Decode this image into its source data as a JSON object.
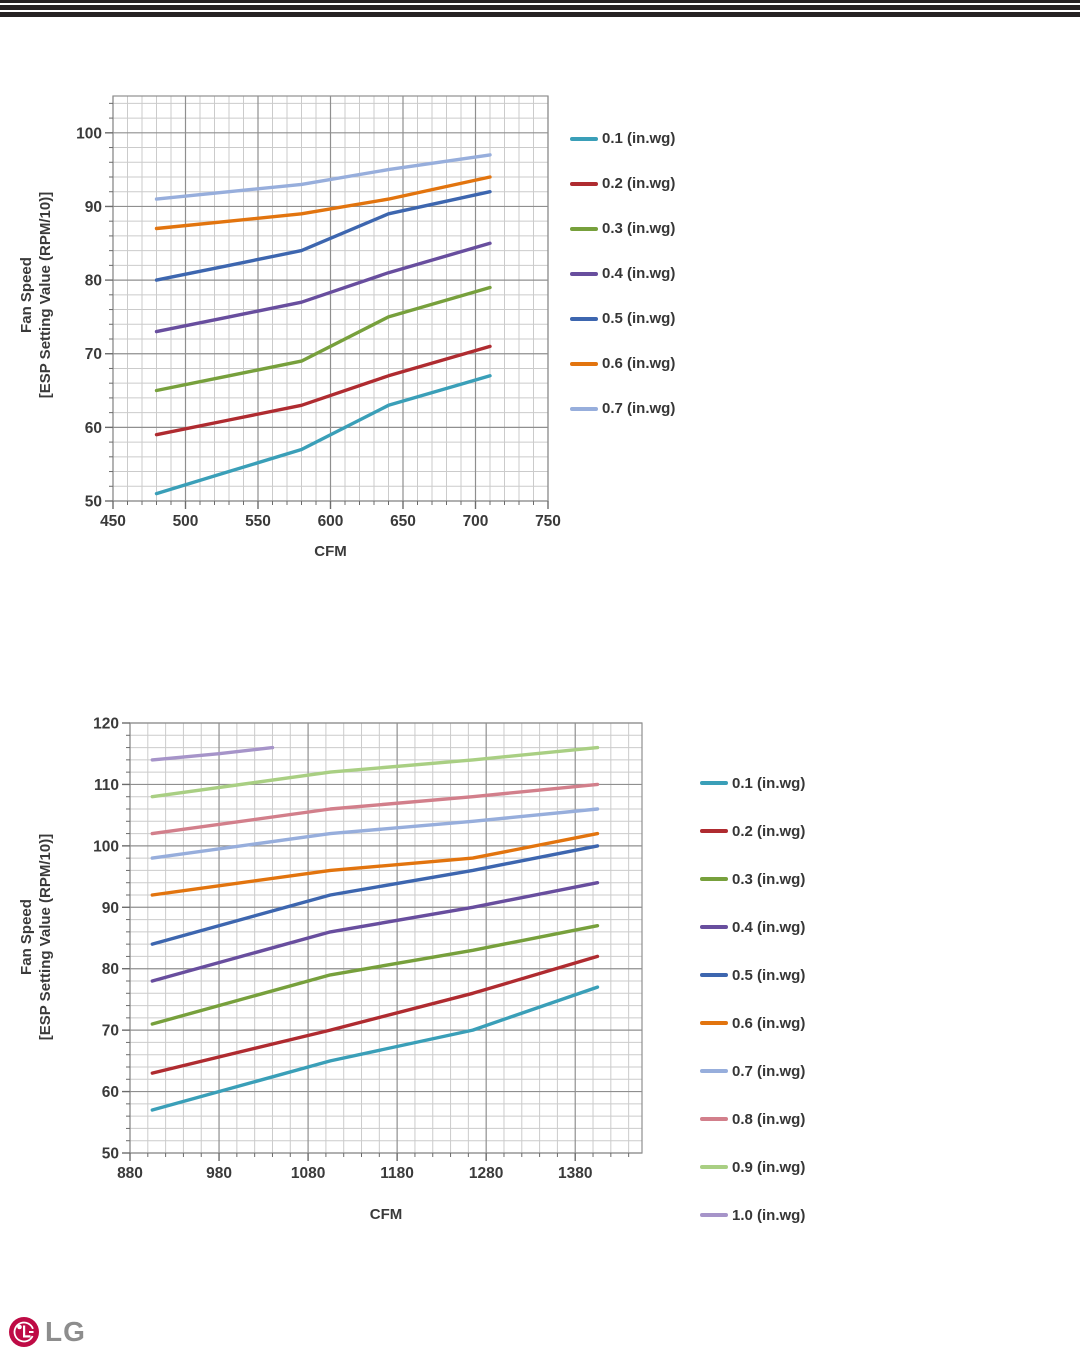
{
  "header": {
    "rule_color": "#262223"
  },
  "footer_logo": {
    "brand": "LG",
    "circle_color": "#BE0B45",
    "letters_color": "#8D8D8D"
  },
  "chart_data": [
    {
      "type": "line",
      "title": "",
      "xlabel": "CFM",
      "ylabel_line1": "Fan Speed",
      "ylabel_line2": "[ESP Setting Value (RPM/10)]",
      "xlim": [
        450,
        750
      ],
      "ylim": [
        50,
        105
      ],
      "x_major": 50,
      "x_minor": 10,
      "y_major": 10,
      "y_minor": 2,
      "x_ticks": [
        450,
        500,
        550,
        600,
        650,
        700,
        750
      ],
      "y_ticks": [
        50,
        60,
        70,
        80,
        90,
        100
      ],
      "grid": "on",
      "legend_position": "right",
      "series": [
        {
          "name": "0.1 (in.wg)",
          "color": "#3A9FB8",
          "x": [
            480,
            530,
            580,
            640,
            710
          ],
          "values": [
            51,
            54,
            57,
            63,
            67
          ]
        },
        {
          "name": "0.2 (in.wg)",
          "color": "#AF2B30",
          "x": [
            480,
            530,
            580,
            640,
            710
          ],
          "values": [
            59,
            61,
            63,
            67,
            71
          ]
        },
        {
          "name": "0.3 (in.wg)",
          "color": "#77A03C",
          "x": [
            480,
            530,
            580,
            640,
            710
          ],
          "values": [
            65,
            67,
            69,
            75,
            79
          ]
        },
        {
          "name": "0.4 (in.wg)",
          "color": "#684E9E",
          "x": [
            480,
            530,
            580,
            640,
            710
          ],
          "values": [
            73,
            75,
            77,
            81,
            85
          ]
        },
        {
          "name": "0.5 (in.wg)",
          "color": "#3D66AF",
          "x": [
            480,
            530,
            580,
            640,
            710
          ],
          "values": [
            80,
            82,
            84,
            89,
            92
          ]
        },
        {
          "name": "0.6 (in.wg)",
          "color": "#E2740E",
          "x": [
            480,
            530,
            580,
            640,
            710
          ],
          "values": [
            87,
            88,
            89,
            91,
            94
          ]
        },
        {
          "name": "0.7 (in.wg)",
          "color": "#97AEDC",
          "x": [
            480,
            530,
            580,
            640,
            710
          ],
          "values": [
            91,
            92,
            93,
            95,
            97
          ]
        }
      ]
    },
    {
      "type": "line",
      "title": "",
      "xlabel": "CFM",
      "ylabel_line1": "Fan Speed",
      "ylabel_line2": "[ESP Setting Value (RPM/10)]",
      "xlim": [
        880,
        1455
      ],
      "ylim": [
        50,
        120
      ],
      "x_major": 100,
      "x_minor": 20,
      "y_major": 10,
      "y_minor": 2,
      "x_ticks": [
        880,
        980,
        1080,
        1180,
        1280,
        1380
      ],
      "y_ticks": [
        50,
        60,
        70,
        80,
        90,
        100,
        110,
        120
      ],
      "grid": "on",
      "legend_position": "right",
      "series": [
        {
          "name": "0.1 (in.wg)",
          "color": "#3A9FB8",
          "x": [
            905,
            1105,
            1265,
            1405
          ],
          "values": [
            57,
            65,
            70,
            77
          ]
        },
        {
          "name": "0.2 (in.wg)",
          "color": "#AF2B30",
          "x": [
            905,
            1105,
            1265,
            1405
          ],
          "values": [
            63,
            70,
            76,
            82
          ]
        },
        {
          "name": "0.3 (in.wg)",
          "color": "#77A03C",
          "x": [
            905,
            1105,
            1265,
            1405
          ],
          "values": [
            71,
            79,
            83,
            87
          ]
        },
        {
          "name": "0.4 (in.wg)",
          "color": "#684E9E",
          "x": [
            905,
            1105,
            1265,
            1405
          ],
          "values": [
            78,
            86,
            90,
            94
          ]
        },
        {
          "name": "0.5 (in.wg)",
          "color": "#3D66AF",
          "x": [
            905,
            1105,
            1265,
            1405
          ],
          "values": [
            84,
            92,
            96,
            100
          ]
        },
        {
          "name": "0.6 (in.wg)",
          "color": "#E2740E",
          "x": [
            905,
            1105,
            1265,
            1405
          ],
          "values": [
            92,
            96,
            98,
            102
          ]
        },
        {
          "name": "0.7 (in.wg)",
          "color": "#97AEDC",
          "x": [
            905,
            1105,
            1265,
            1405
          ],
          "values": [
            98,
            102,
            104,
            106
          ]
        },
        {
          "name": "0.8 (in.wg)",
          "color": "#D27F8B",
          "x": [
            905,
            1105,
            1265,
            1405
          ],
          "values": [
            102,
            106,
            108,
            110
          ]
        },
        {
          "name": "0.9 (in.wg)",
          "color": "#A9CF83",
          "x": [
            905,
            1105,
            1265,
            1405
          ],
          "values": [
            108,
            112,
            114,
            116
          ]
        },
        {
          "name": "1.0 (in.wg)",
          "color": "#A694C9",
          "x": [
            905,
            980,
            1040
          ],
          "values": [
            114,
            115,
            116
          ]
        }
      ]
    }
  ]
}
